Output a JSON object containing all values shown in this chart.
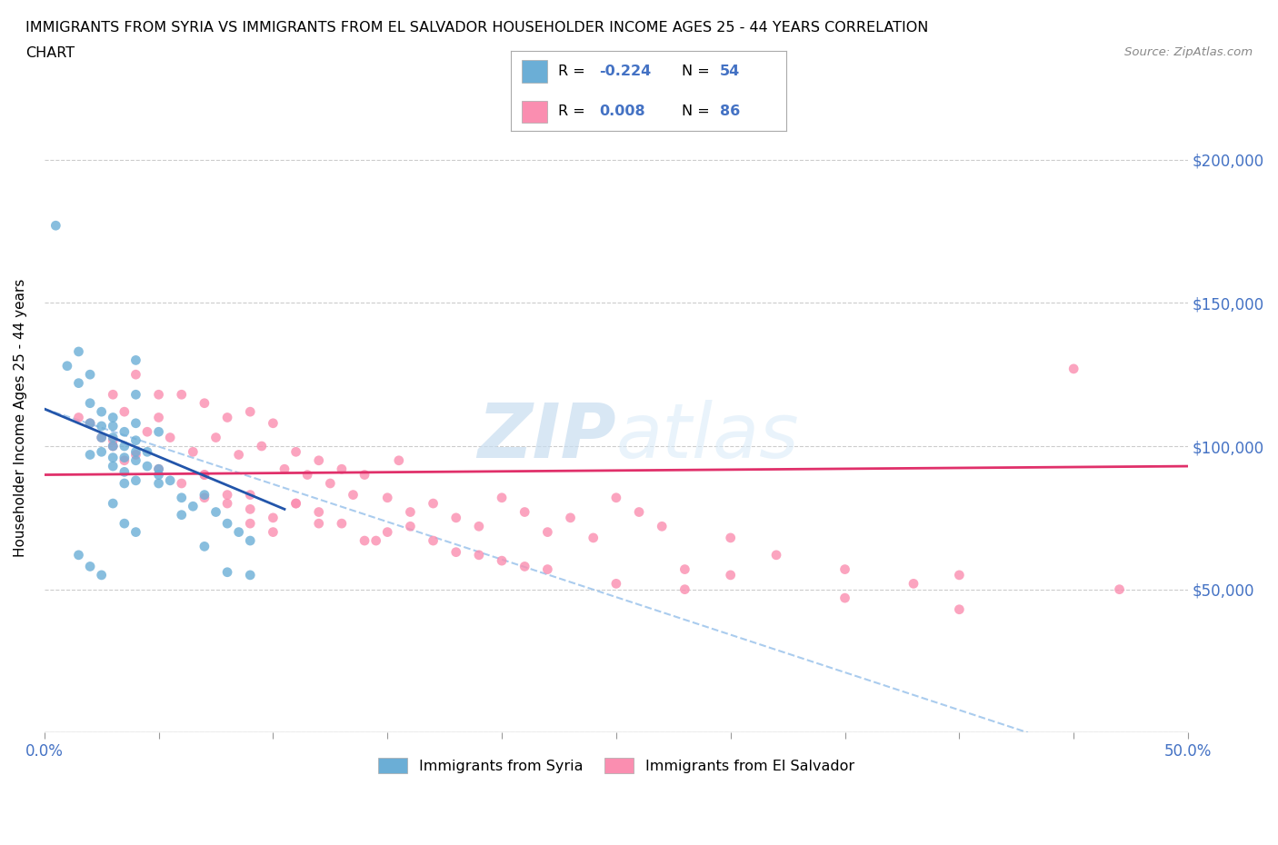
{
  "title_line1": "IMMIGRANTS FROM SYRIA VS IMMIGRANTS FROM EL SALVADOR HOUSEHOLDER INCOME AGES 25 - 44 YEARS CORRELATION",
  "title_line2": "CHART",
  "source": "Source: ZipAtlas.com",
  "ylabel": "Householder Income Ages 25 - 44 years",
  "xlim": [
    0.0,
    0.5
  ],
  "ylim": [
    0,
    220000
  ],
  "yticks": [
    0,
    50000,
    100000,
    150000,
    200000
  ],
  "ytick_labels": [
    "",
    "$50,000",
    "$100,000",
    "$150,000",
    "$200,000"
  ],
  "xticks": [
    0.0,
    0.05,
    0.1,
    0.15,
    0.2,
    0.25,
    0.3,
    0.35,
    0.4,
    0.45,
    0.5
  ],
  "xtick_labels": [
    "0.0%",
    "",
    "",
    "",
    "",
    "",
    "",
    "",
    "",
    "",
    "50.0%"
  ],
  "syria_color": "#6baed6",
  "salvador_color": "#fa8eb0",
  "syria_trend_color": "#2255aa",
  "salvador_trend_color": "#e0306a",
  "dashed_line_color": "#aaccee",
  "background_color": "#ffffff",
  "grid_color": "#cccccc",
  "legend_label_syria": "Immigrants from Syria",
  "legend_label_salvador": "Immigrants from El Salvador",
  "syria_scatter_x": [
    0.005,
    0.01,
    0.015,
    0.015,
    0.02,
    0.02,
    0.02,
    0.025,
    0.025,
    0.025,
    0.025,
    0.03,
    0.03,
    0.03,
    0.03,
    0.03,
    0.03,
    0.035,
    0.035,
    0.035,
    0.035,
    0.04,
    0.04,
    0.04,
    0.04,
    0.04,
    0.045,
    0.045,
    0.05,
    0.05,
    0.055,
    0.06,
    0.065,
    0.07,
    0.075,
    0.08,
    0.085,
    0.09,
    0.015,
    0.02,
    0.025,
    0.03,
    0.035,
    0.04,
    0.04,
    0.05,
    0.06,
    0.07,
    0.08,
    0.09,
    0.035,
    0.04,
    0.05,
    0.02
  ],
  "syria_scatter_y": [
    177000,
    128000,
    133000,
    122000,
    125000,
    115000,
    108000,
    112000,
    107000,
    103000,
    98000,
    110000,
    107000,
    103000,
    100000,
    96000,
    93000,
    105000,
    100000,
    96000,
    91000,
    108000,
    102000,
    98000,
    95000,
    88000,
    98000,
    93000,
    92000,
    87000,
    88000,
    82000,
    79000,
    83000,
    77000,
    73000,
    70000,
    67000,
    62000,
    58000,
    55000,
    80000,
    73000,
    70000,
    130000,
    105000,
    76000,
    65000,
    56000,
    55000,
    87000,
    118000,
    90000,
    97000
  ],
  "salvador_scatter_x": [
    0.015,
    0.02,
    0.025,
    0.03,
    0.03,
    0.035,
    0.035,
    0.04,
    0.045,
    0.05,
    0.05,
    0.055,
    0.06,
    0.065,
    0.07,
    0.07,
    0.075,
    0.08,
    0.08,
    0.085,
    0.09,
    0.09,
    0.095,
    0.1,
    0.1,
    0.105,
    0.11,
    0.11,
    0.115,
    0.12,
    0.12,
    0.125,
    0.13,
    0.135,
    0.14,
    0.145,
    0.15,
    0.155,
    0.16,
    0.17,
    0.18,
    0.19,
    0.2,
    0.21,
    0.22,
    0.23,
    0.24,
    0.25,
    0.26,
    0.27,
    0.28,
    0.3,
    0.32,
    0.35,
    0.38,
    0.4,
    0.45,
    0.47,
    0.03,
    0.04,
    0.05,
    0.06,
    0.07,
    0.08,
    0.09,
    0.1,
    0.12,
    0.14,
    0.16,
    0.18,
    0.2,
    0.22,
    0.25,
    0.28,
    0.3,
    0.35,
    0.4,
    0.07,
    0.09,
    0.11,
    0.13,
    0.15,
    0.17,
    0.19,
    0.21
  ],
  "salvador_scatter_y": [
    110000,
    108000,
    103000,
    118000,
    100000,
    112000,
    95000,
    125000,
    105000,
    118000,
    110000,
    103000,
    118000,
    98000,
    115000,
    90000,
    103000,
    110000,
    83000,
    97000,
    112000,
    78000,
    100000,
    108000,
    75000,
    92000,
    98000,
    80000,
    90000,
    95000,
    73000,
    87000,
    92000,
    83000,
    90000,
    67000,
    82000,
    95000,
    77000,
    80000,
    75000,
    72000,
    82000,
    77000,
    70000,
    75000,
    68000,
    82000,
    77000,
    72000,
    57000,
    68000,
    62000,
    57000,
    52000,
    55000,
    127000,
    50000,
    102000,
    97000,
    92000,
    87000,
    82000,
    80000,
    73000,
    70000,
    77000,
    67000,
    72000,
    63000,
    60000,
    57000,
    52000,
    50000,
    55000,
    47000,
    43000,
    90000,
    83000,
    80000,
    73000,
    70000,
    67000,
    62000,
    58000
  ],
  "syria_trend_x": [
    0.0,
    0.105
  ],
  "syria_trend_y": [
    113000,
    78000
  ],
  "salvador_trend_x": [
    0.0,
    0.5
  ],
  "salvador_trend_y": [
    90000,
    93000
  ],
  "dashed_trend_x": [
    0.0,
    0.43
  ],
  "dashed_trend_y": [
    113000,
    0
  ]
}
